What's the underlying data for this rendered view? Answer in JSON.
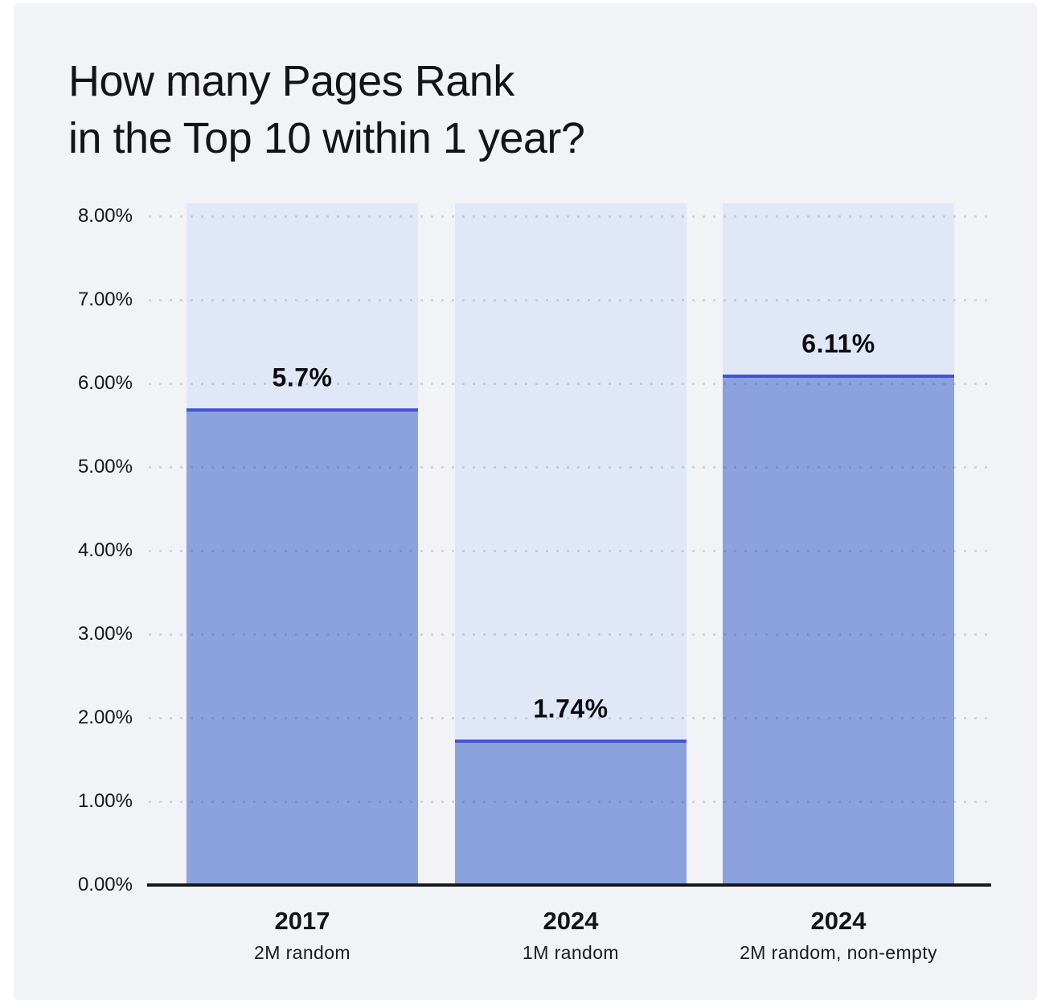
{
  "page": {
    "title": "How many Pages Rank\nin the Top 10 within 1 year?"
  },
  "chart_data": {
    "type": "bar",
    "title": "How many Pages Rank in the Top 10 within 1 year?",
    "categories": [
      "2017",
      "2024",
      "2024"
    ],
    "category_sublabels": [
      "2M random",
      "1M random",
      "2M random, non-empty"
    ],
    "values": [
      5.7,
      1.74,
      6.11
    ],
    "value_labels": [
      "5.7%",
      "1.74%",
      "6.11%"
    ],
    "xlabel": "",
    "ylabel": "",
    "ylim": [
      0,
      8
    ],
    "yticks": [
      0,
      1,
      2,
      3,
      4,
      5,
      6,
      7,
      8
    ],
    "ytick_labels": [
      "0.00%",
      "1.00%",
      "2.00%",
      "3.00%",
      "4.00%",
      "5.00%",
      "6.00%",
      "7.00%",
      "8.00%"
    ],
    "grid": "horizontal-dotted",
    "legend": "none",
    "colors": {
      "panel_background": "#f2f3f6",
      "column_background": "#e0e8f7",
      "bar_fill": "#8ba2dd",
      "bar_top_line": "#4353d9",
      "axis": "#17171c",
      "text": "#141417"
    }
  }
}
